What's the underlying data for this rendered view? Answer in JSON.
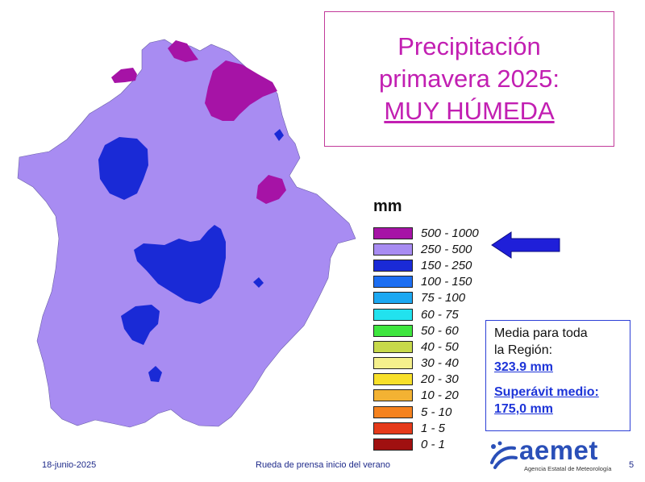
{
  "title": {
    "line1": "Precipitación",
    "line2": "primavera 2025:",
    "line3": "MUY HÚMEDA"
  },
  "legend": {
    "title": "mm",
    "items": [
      {
        "label": "500 - 1000",
        "color": "#a613a6"
      },
      {
        "label": "250 - 500",
        "color": "#a88cf2"
      },
      {
        "label": "150 - 250",
        "color": "#1a2ad6"
      },
      {
        "label": "100 - 150",
        "color": "#1c6ef2"
      },
      {
        "label": "75 - 100",
        "color": "#1ca8f2"
      },
      {
        "label": "60 - 75",
        "color": "#22e2ee"
      },
      {
        "label": "50 - 60",
        "color": "#3ee63e"
      },
      {
        "label": "40 - 50",
        "color": "#c7d94a"
      },
      {
        "label": "30 - 40",
        "color": "#f5f08c"
      },
      {
        "label": "20 - 30",
        "color": "#f8e02a"
      },
      {
        "label": "10 - 20",
        "color": "#f3b233"
      },
      {
        "label": "5 - 10",
        "color": "#f5821e"
      },
      {
        "label": "1 - 5",
        "color": "#e53a1a"
      },
      {
        "label": "0 - 1",
        "color": "#a01010"
      }
    ],
    "highlighted_index": 1
  },
  "stats": {
    "line1": "Media para toda",
    "line2": "la Región:",
    "mean_value": "323.9 mm",
    "surplus_label": "Superávit medio:",
    "surplus_value": "175,0 mm"
  },
  "footer": {
    "date": "18-junio-2025",
    "event": "Rueda de prensa inicio del verano",
    "page": "5"
  },
  "logo": {
    "name": "aemet",
    "subtitle": "Agencia Estatal de Meteorología"
  },
  "colors": {
    "accent_magenta": "#c21fb2",
    "link_blue": "#1d34d8",
    "footer_blue": "#1e2a8a",
    "arrow_blue": "#1f1fd9"
  }
}
